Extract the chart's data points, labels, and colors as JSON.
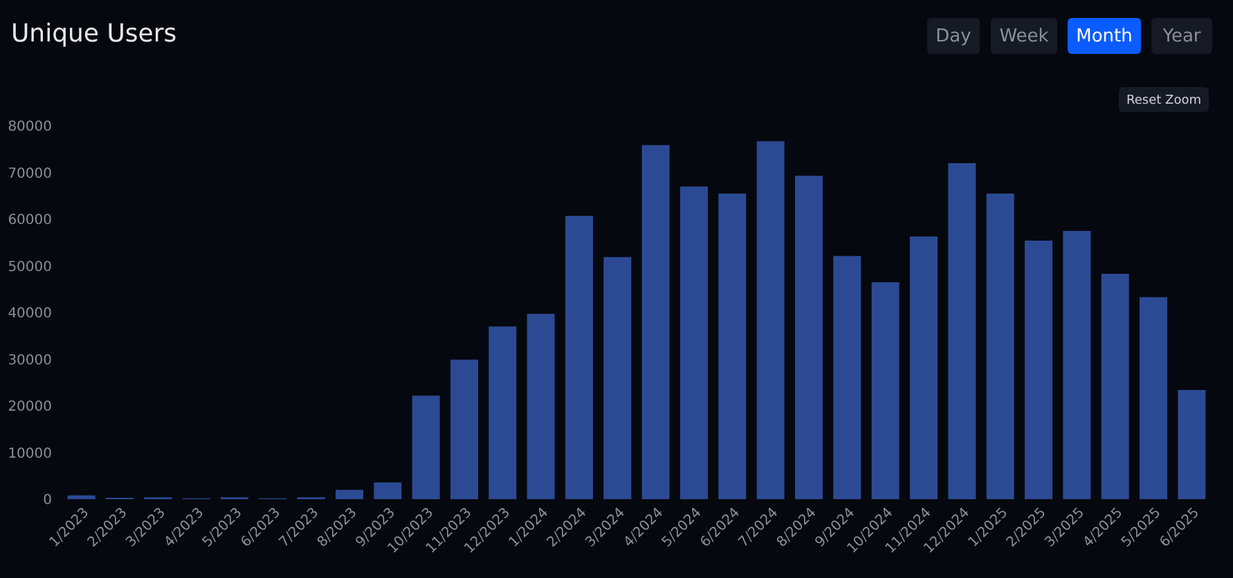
{
  "chart_data": {
    "type": "bar",
    "title": "Unique Users",
    "categories": [
      "1/2023",
      "2/2023",
      "3/2023",
      "4/2023",
      "5/2023",
      "6/2023",
      "7/2023",
      "8/2023",
      "9/2023",
      "10/2023",
      "11/2023",
      "12/2023",
      "1/2024",
      "2/2024",
      "3/2024",
      "4/2024",
      "5/2024",
      "6/2024",
      "7/2024",
      "8/2024",
      "9/2024",
      "10/2024",
      "11/2024",
      "12/2024",
      "1/2025",
      "2/2025",
      "3/2025",
      "4/2025",
      "5/2025",
      "6/2025"
    ],
    "values": [
      800,
      300,
      400,
      200,
      400,
      200,
      400,
      2000,
      3600,
      22200,
      29900,
      37000,
      39700,
      60700,
      51900,
      75900,
      67000,
      65500,
      76700,
      69300,
      52100,
      46500,
      56300,
      72000,
      65500,
      55400,
      57500,
      48300,
      43300,
      23400
    ],
    "color": "#2c4a94",
    "ylim": [
      0,
      80000
    ],
    "yticks": [
      0,
      10000,
      20000,
      30000,
      40000,
      50000,
      60000,
      70000,
      80000
    ],
    "grid": false,
    "annotations": [
      "Day",
      "Week",
      "Month",
      "Year",
      "Reset Zoom"
    ]
  }
}
